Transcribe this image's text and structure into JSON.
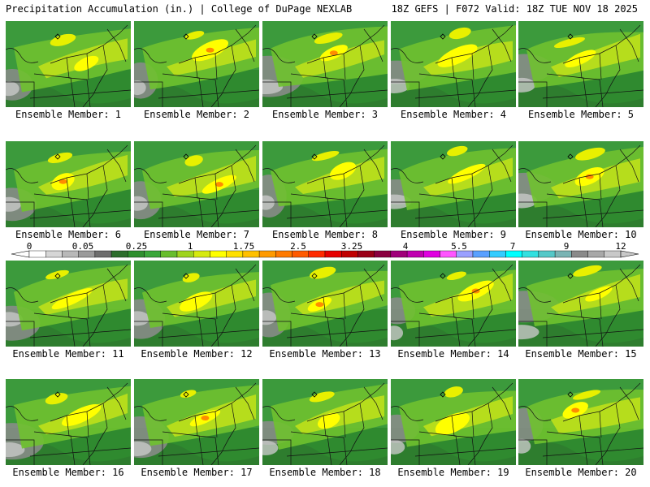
{
  "header": {
    "title_left": "Precipitation Accumulation (in.) | College of DuPage NEXLAB",
    "title_right": "18Z GEFS | F072 Valid: 18Z TUE NOV 18 2025"
  },
  "panels": [
    {
      "label": "Ensemble Member: 1"
    },
    {
      "label": "Ensemble Member: 2"
    },
    {
      "label": "Ensemble Member: 3"
    },
    {
      "label": "Ensemble Member: 4"
    },
    {
      "label": "Ensemble Member: 5"
    },
    {
      "label": "Ensemble Member: 6"
    },
    {
      "label": "Ensemble Member: 7"
    },
    {
      "label": "Ensemble Member: 8"
    },
    {
      "label": "Ensemble Member: 9"
    },
    {
      "label": "Ensemble Member: 10"
    },
    {
      "label": "Ensemble Member: 11"
    },
    {
      "label": "Ensemble Member: 12"
    },
    {
      "label": "Ensemble Member: 13"
    },
    {
      "label": "Ensemble Member: 14"
    },
    {
      "label": "Ensemble Member: 15"
    },
    {
      "label": "Ensemble Member: 16"
    },
    {
      "label": "Ensemble Member: 17"
    },
    {
      "label": "Ensemble Member: 18"
    },
    {
      "label": "Ensemble Member: 19"
    },
    {
      "label": "Ensemble Member: 20"
    }
  ],
  "colorbar": {
    "labels": [
      "0",
      "0.05",
      "0.25",
      "1",
      "1.75",
      "2.5",
      "3.25",
      "4",
      "5.5",
      "7",
      "9",
      "12"
    ],
    "colors": [
      "#ffffff",
      "#d6d6d6",
      "#b8b8b8",
      "#9a9a9a",
      "#6e6e6e",
      "#2e6e2e",
      "#2f8f2f",
      "#3aa63a",
      "#68bd2e",
      "#9fd41f",
      "#d6ea10",
      "#ffff00",
      "#ffe000",
      "#ffc000",
      "#ff9a00",
      "#ff7a00",
      "#ff5a00",
      "#ff2a00",
      "#e60000",
      "#c00000",
      "#9a0018",
      "#8a0040",
      "#a0007a",
      "#c000b0",
      "#e000e0",
      "#ff55ff",
      "#9aa0ff",
      "#5aa0ff",
      "#33ccff",
      "#00ffff",
      "#33e0e0",
      "#55c8c8",
      "#7ab4b4",
      "#8a8a8a",
      "#a8a8a8",
      "#c8c8c8"
    ]
  }
}
